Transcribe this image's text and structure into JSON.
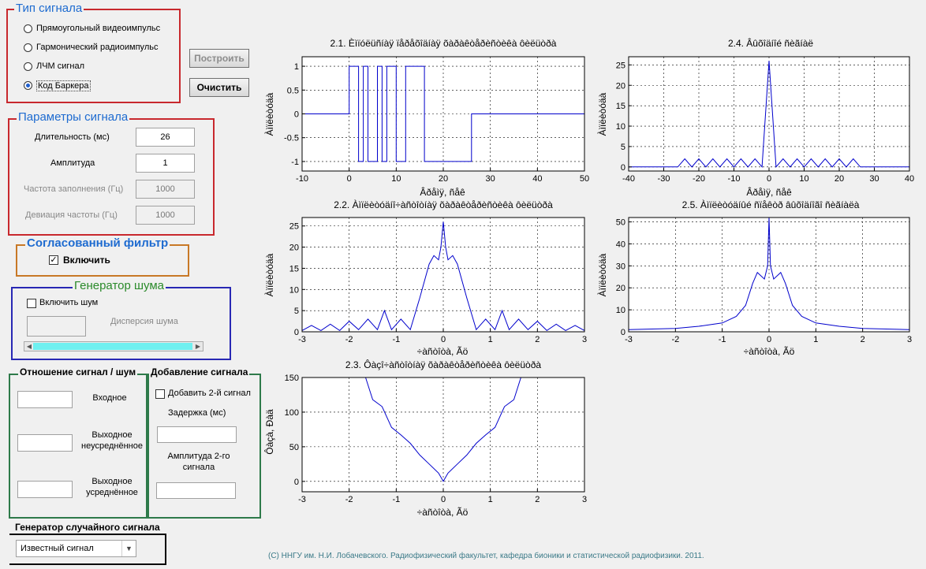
{
  "signal_type": {
    "title": "Тип сигнала",
    "options": [
      {
        "label": "Прямоугольный видеоимпульс",
        "selected": false
      },
      {
        "label": "Гармонический радиоимпульс",
        "selected": false
      },
      {
        "label": "ЛЧМ сигнал",
        "selected": false
      },
      {
        "label": "Код Баркера",
        "selected": true
      }
    ]
  },
  "buttons": {
    "build": "Построить",
    "clear": "Очистить"
  },
  "signal_params": {
    "title": "Параметры сигнала",
    "duration_label": "Длительность (мс)",
    "duration_value": "26",
    "amplitude_label": "Амплитуда",
    "amplitude_value": "1",
    "fill_freq_label": "Частота заполнения (Гц)",
    "fill_freq_value": "1000",
    "freq_dev_label": "Девиация частоты (Гц)",
    "freq_dev_value": "1000"
  },
  "matched_filter": {
    "title": "Согласованный фильтр",
    "enable_label": "Включить",
    "checked": true
  },
  "noise_gen": {
    "title": "Генератор шума",
    "enable_label": "Включить шум",
    "checked": false,
    "variance_label": "Дисперсия шума",
    "variance_value": ""
  },
  "snr": {
    "title": "Отношение сигнал / шум",
    "input_label": "Входное",
    "output_raw_label": "Выходное неусреднённое",
    "output_avg_label": "Выходное усреднённое"
  },
  "add_signal": {
    "title": "Добавление сигнала",
    "enable_label": "Добавить 2-й сигнал",
    "checked": false,
    "delay_label": "Задержка (мс)",
    "amp2_label": "Амплитуда 2-го сигнала"
  },
  "random_gen": {
    "title": "Генератор случайного сигнала",
    "selected": "Известный сигнал"
  },
  "footer": "(C) ННГУ им. Н.И. Лобачевского. Радиофизический факультет, кафедра бионики и статистической радиофизики. 2011.",
  "colors": {
    "plot_line": "#0000cc",
    "signal_type_border": "#c8282d",
    "params_border": "#c8282d",
    "filter_border": "#c87826",
    "noise_border": "#2828b4",
    "snr_border": "#2e7a4a",
    "filter_title": "#1e6bd0",
    "noise_title": "#2a8a2a",
    "slider_fill": "#6ff0f0"
  },
  "chart_data": [
    {
      "id": "p21",
      "type": "line",
      "title": "2.1. Èìïóëüñíàÿ ïåðåõîäíàÿ õàðàêòåðèñòèêà ôèëüòðà",
      "xlabel": "Âðåìÿ, ñåê",
      "ylabel": "Àìïëèòóäà",
      "xlim": [
        -10,
        50
      ],
      "ylim": [
        -1.2,
        1.2
      ],
      "xticks": [
        -10,
        0,
        10,
        20,
        30,
        40,
        50
      ],
      "yticks": [
        -1,
        -0.5,
        0,
        0.5,
        1
      ],
      "grid": true,
      "x": [
        -10,
        0,
        0,
        2,
        2,
        3,
        3,
        4,
        4,
        6,
        6,
        7,
        7,
        8,
        8,
        10,
        10,
        12,
        12,
        16,
        16,
        26,
        26,
        50
      ],
      "y": [
        0,
        0,
        1,
        1,
        -1,
        -1,
        1,
        1,
        -1,
        -1,
        1,
        1,
        -1,
        -1,
        1,
        1,
        -1,
        -1,
        1,
        1,
        -1,
        -1,
        0,
        0
      ]
    },
    {
      "id": "p24",
      "type": "line",
      "title": "2.4. Âûõîäíîé ñèãíàë",
      "xlabel": "Âðåìÿ, ñåê",
      "ylabel": "Àìïëèòóäà",
      "xlim": [
        -40,
        40
      ],
      "ylim": [
        -1,
        27
      ],
      "xticks": [
        -40,
        -30,
        -20,
        -10,
        0,
        10,
        20,
        30,
        40
      ],
      "yticks": [
        0,
        5,
        10,
        15,
        20,
        25
      ],
      "grid": true,
      "x": [
        -40,
        -26,
        -24,
        -22,
        -20,
        -18,
        -16,
        -14,
        -12,
        -10,
        -8,
        -6,
        -4,
        -2,
        0,
        2,
        4,
        6,
        8,
        10,
        12,
        14,
        16,
        18,
        20,
        22,
        24,
        26,
        40
      ],
      "y": [
        0,
        0,
        2,
        0,
        2,
        0,
        2,
        0,
        2,
        0,
        2,
        0,
        2,
        0,
        26,
        0,
        2,
        0,
        2,
        0,
        2,
        0,
        2,
        0,
        2,
        0,
        2,
        0,
        0
      ]
    },
    {
      "id": "p22",
      "type": "line",
      "title": "2.2. Àìïëèòóäíî÷àñòîòíàÿ õàðàêòåðèñòèêà ôèëüòðà",
      "xlabel": "÷àñòîòà, Ãö",
      "ylabel": "Àìïëèòóäà",
      "xlim": [
        -3,
        3
      ],
      "ylim": [
        0,
        27
      ],
      "xticks": [
        -3,
        -2,
        -1,
        0,
        1,
        2,
        3
      ],
      "yticks": [
        0,
        5,
        10,
        15,
        20,
        25
      ],
      "grid": true,
      "x": [
        -3,
        -2.8,
        -2.6,
        -2.4,
        -2.2,
        -2.0,
        -1.8,
        -1.6,
        -1.4,
        -1.25,
        -1.1,
        -0.9,
        -0.7,
        -0.5,
        -0.3,
        -0.2,
        -0.1,
        -0.05,
        0,
        0.05,
        0.1,
        0.2,
        0.3,
        0.5,
        0.7,
        0.9,
        1.1,
        1.25,
        1.4,
        1.6,
        1.8,
        2.0,
        2.2,
        2.4,
        2.6,
        2.8,
        3
      ],
      "y": [
        0.3,
        1.5,
        0.3,
        1.8,
        0.3,
        2.5,
        0.5,
        3,
        0.5,
        5,
        0.5,
        3,
        0.5,
        8,
        16,
        18,
        17,
        20,
        26,
        20,
        17,
        18,
        16,
        8,
        0.5,
        3,
        0.5,
        5,
        0.5,
        3,
        0.5,
        2.5,
        0.3,
        1.8,
        0.3,
        1.5,
        0.3
      ]
    },
    {
      "id": "p25",
      "type": "line",
      "title": "2.5. Àìïëèòóäíûé ñïåêòð âûõîäíîãî ñèãíàëà",
      "xlabel": "÷àñòîòà, Ãö",
      "ylabel": "Àìïëèòóäà",
      "xlim": [
        -3,
        3
      ],
      "ylim": [
        0,
        52
      ],
      "xticks": [
        -3,
        -2,
        -1,
        0,
        1,
        2,
        3
      ],
      "yticks": [
        0,
        10,
        20,
        30,
        40,
        50
      ],
      "grid": true,
      "x": [
        -3,
        -2,
        -1.5,
        -1,
        -0.7,
        -0.5,
        -0.35,
        -0.25,
        -0.1,
        -0.03,
        0,
        0.03,
        0.1,
        0.25,
        0.35,
        0.5,
        0.7,
        1,
        1.5,
        2,
        3
      ],
      "y": [
        1,
        1.5,
        2.5,
        4,
        7,
        12,
        22,
        27,
        24,
        30,
        52,
        30,
        24,
        27,
        22,
        12,
        7,
        4,
        2.5,
        1.5,
        1
      ]
    },
    {
      "id": "p23",
      "type": "line",
      "title": "2.3. Ôàçî÷àñòîòíàÿ õàðàêòåðèñòèêà ôèëüòðà",
      "xlabel": "÷àñòîòà, Ãö",
      "ylabel": "Ôàçà, Ðàä",
      "xlim": [
        -3,
        3
      ],
      "ylim": [
        -15,
        150
      ],
      "xticks": [
        -3,
        -2,
        -1,
        0,
        1,
        2,
        3
      ],
      "yticks": [
        0,
        50,
        100,
        150
      ],
      "grid": true,
      "x": [
        -1.65,
        -1.5,
        -1.3,
        -1.1,
        -0.9,
        -0.7,
        -0.5,
        -0.3,
        -0.1,
        0,
        0.1,
        0.3,
        0.5,
        0.7,
        0.9,
        1.1,
        1.3,
        1.5,
        1.65
      ],
      "y": [
        150,
        118,
        108,
        78,
        67,
        55,
        38,
        25,
        12,
        0,
        12,
        25,
        38,
        55,
        67,
        78,
        108,
        118,
        150
      ]
    }
  ]
}
